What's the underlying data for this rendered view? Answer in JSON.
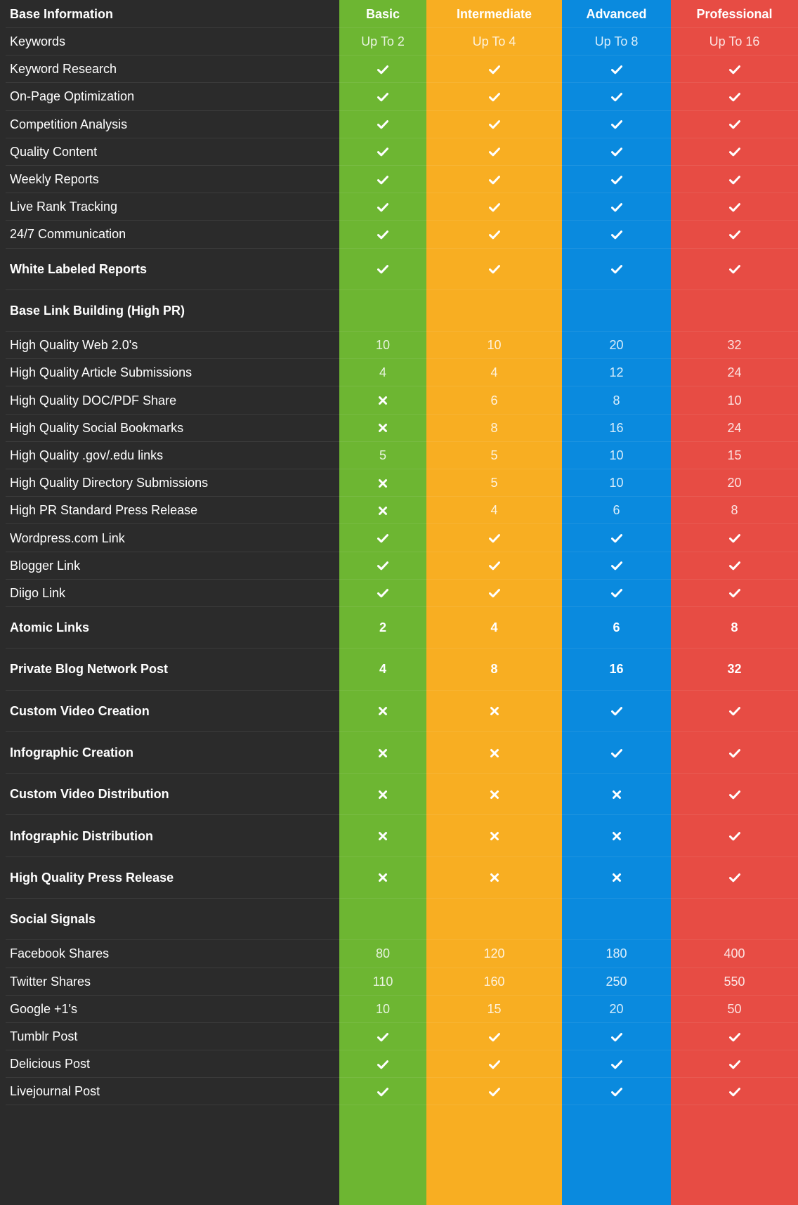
{
  "columns": [
    {
      "key": "basic",
      "label": "Basic",
      "color": "#6db632"
    },
    {
      "key": "intermediate",
      "label": "Intermediate",
      "color": "#f8ae22"
    },
    {
      "key": "advanced",
      "label": "Advanced",
      "color": "#0a8ade"
    },
    {
      "key": "professional",
      "label": "Professional",
      "color": "#e74c44"
    }
  ],
  "header_label": "Base Information",
  "rows": [
    {
      "label": "Keywords",
      "values": [
        "Up To 2",
        "Up To 4",
        "Up To 8",
        "Up To 16"
      ]
    },
    {
      "label": "Keyword Research",
      "values": [
        "check",
        "check",
        "check",
        "check"
      ]
    },
    {
      "label": "On-Page Optimization",
      "values": [
        "check",
        "check",
        "check",
        "check"
      ]
    },
    {
      "label": "Competition Analysis",
      "values": [
        "check",
        "check",
        "check",
        "check"
      ]
    },
    {
      "label": "Quality Content",
      "values": [
        "check",
        "check",
        "check",
        "check"
      ]
    },
    {
      "label": "Weekly Reports",
      "values": [
        "check",
        "check",
        "check",
        "check"
      ]
    },
    {
      "label": "Live Rank Tracking",
      "values": [
        "check",
        "check",
        "check",
        "check"
      ]
    },
    {
      "label": "24/7 Communication",
      "values": [
        "check",
        "check",
        "check",
        "check"
      ]
    },
    {
      "label": "White Labeled Reports",
      "values": [
        "check",
        "check",
        "check",
        "check"
      ],
      "bold": true,
      "tall": true
    },
    {
      "label": "Base Link Building (High PR)",
      "values": [
        "",
        "",
        "",
        ""
      ],
      "bold": true,
      "tall": true
    },
    {
      "label": "High Quality Web 2.0's",
      "values": [
        "10",
        "10",
        "20",
        "32"
      ]
    },
    {
      "label": "High Quality Article Submissions",
      "values": [
        "4",
        "4",
        "12",
        "24"
      ]
    },
    {
      "label": "High Quality DOC/PDF Share",
      "values": [
        "cross",
        "6",
        "8",
        "10"
      ]
    },
    {
      "label": "High Quality Social Bookmarks",
      "values": [
        "cross",
        "8",
        "16",
        "24"
      ]
    },
    {
      "label": "High Quality .gov/.edu links",
      "values": [
        "5",
        "5",
        "10",
        "15"
      ]
    },
    {
      "label": "High Quality Directory Submissions",
      "values": [
        "cross",
        "5",
        "10",
        "20"
      ]
    },
    {
      "label": "High PR Standard Press Release",
      "values": [
        "cross",
        "4",
        "6",
        "8"
      ]
    },
    {
      "label": "Wordpress.com Link",
      "values": [
        "check",
        "check",
        "check",
        "check"
      ]
    },
    {
      "label": "Blogger Link",
      "values": [
        "check",
        "check",
        "check",
        "check"
      ]
    },
    {
      "label": "Diigo Link",
      "values": [
        "check",
        "check",
        "check",
        "check"
      ]
    },
    {
      "label": "Atomic Links",
      "values": [
        "2",
        "4",
        "6",
        "8"
      ],
      "bold": true,
      "tall": true
    },
    {
      "label": "Private Blog Network Post",
      "values": [
        "4",
        "8",
        "16",
        "32"
      ],
      "bold": true,
      "tall": true
    },
    {
      "label": "Custom Video Creation",
      "values": [
        "cross",
        "cross",
        "check",
        "check"
      ],
      "bold": true,
      "tall": true
    },
    {
      "label": "Infographic Creation",
      "values": [
        "cross",
        "cross",
        "check",
        "check"
      ],
      "bold": true,
      "tall": true
    },
    {
      "label": "Custom Video Distribution",
      "values": [
        "cross",
        "cross",
        "cross",
        "check"
      ],
      "bold": true,
      "tall": true
    },
    {
      "label": "Infographic Distribution",
      "values": [
        "cross",
        "cross",
        "cross",
        "check"
      ],
      "bold": true,
      "tall": true
    },
    {
      "label": "High Quality Press Release",
      "values": [
        "cross",
        "cross",
        "cross",
        "check"
      ],
      "bold": true,
      "tall": true
    },
    {
      "label": "Social Signals",
      "values": [
        "",
        "",
        "",
        ""
      ],
      "bold": true,
      "tall": true
    },
    {
      "label": "Facebook Shares",
      "values": [
        "80",
        "120",
        "180",
        "400"
      ]
    },
    {
      "label": "Twitter Shares",
      "values": [
        "110",
        "160",
        "250",
        "550"
      ]
    },
    {
      "label": "Google +1's",
      "values": [
        "10",
        "15",
        "20",
        "50"
      ]
    },
    {
      "label": "Tumblr Post",
      "values": [
        "check",
        "check",
        "check",
        "check"
      ]
    },
    {
      "label": "Delicious Post",
      "values": [
        "check",
        "check",
        "check",
        "check"
      ]
    },
    {
      "label": "Livejournal Post",
      "values": [
        "check",
        "check",
        "check",
        "check"
      ]
    }
  ]
}
